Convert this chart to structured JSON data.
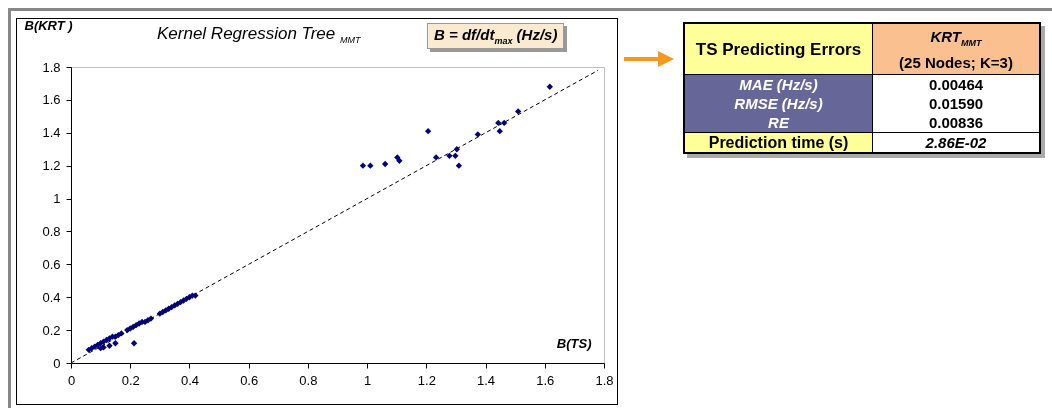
{
  "chart_data": [
    {
      "type": "scatter",
      "title": "Kernel Regression Tree $_{MMT}$",
      "xlabel": "B(TS)",
      "ylabel": "B(KRT )",
      "annotations": [
        "B = df/dt$_{max}$ (Hz/s)"
      ],
      "xlim": [
        0,
        1.8
      ],
      "xticks": [
        0,
        0.2,
        0.4,
        0.6,
        0.8,
        1,
        1.2,
        1.4,
        1.6,
        1.8
      ],
      "ylim": [
        0,
        1.8
      ],
      "yticks": [
        0,
        0.2,
        0.4,
        0.6,
        0.8,
        1,
        1.2,
        1.4,
        1.6,
        1.8
      ],
      "grid": false,
      "marker": "diamond",
      "series": [
        {
          "color": "#000080",
          "x": [
            0.06,
            0.07,
            0.08,
            0.09,
            0.1,
            0.11,
            0.12,
            0.13,
            0.14,
            0.15,
            0.16,
            0.17,
            0.1,
            0.11,
            0.13,
            0.15,
            0.19,
            0.2,
            0.21,
            0.22,
            0.23,
            0.24,
            0.25,
            0.26,
            0.27,
            0.213,
            0.3,
            0.31,
            0.32,
            0.33,
            0.34,
            0.35,
            0.36,
            0.37,
            0.38,
            0.39,
            0.4,
            0.41,
            0.42,
            0.986,
            1.011,
            1.061,
            1.102,
            1.109,
            1.206,
            1.233,
            1.278,
            1.298,
            1.303,
            1.31,
            1.374,
            1.443,
            1.448,
            1.463,
            1.51,
            1.617
          ],
          "values": [
            0.08,
            0.09,
            0.1,
            0.11,
            0.12,
            0.13,
            0.14,
            0.15,
            0.16,
            0.16,
            0.17,
            0.18,
            0.09,
            0.095,
            0.105,
            0.12,
            0.2,
            0.21,
            0.22,
            0.23,
            0.24,
            0.25,
            0.25,
            0.26,
            0.27,
            0.12,
            0.3,
            0.31,
            0.32,
            0.33,
            0.34,
            0.35,
            0.36,
            0.37,
            0.38,
            0.39,
            0.4,
            0.41,
            0.41,
            1.2,
            1.2,
            1.21,
            1.25,
            1.23,
            1.41,
            1.25,
            1.26,
            1.26,
            1.3,
            1.2,
            1.39,
            1.46,
            1.41,
            1.46,
            1.53,
            1.68
          ]
        },
        {
          "type": "line",
          "color": "#000000",
          "line_style": "dashed",
          "marker": "none",
          "x": [
            0,
            1.78
          ],
          "values": [
            0,
            1.78
          ]
        }
      ]
    },
    {
      "type": "other",
      "annotations": [
        "TS Predicting Errors",
        "KRT$_{MMT}$",
        "(25 Nodes; K=3)",
        "MAE (Hz/s)",
        "RMSE (Hz/s)",
        "RE",
        "0.00464",
        "0.01590",
        "0.00836",
        "Prediction time (s)",
        "2.86E-02"
      ]
    }
  ]
}
